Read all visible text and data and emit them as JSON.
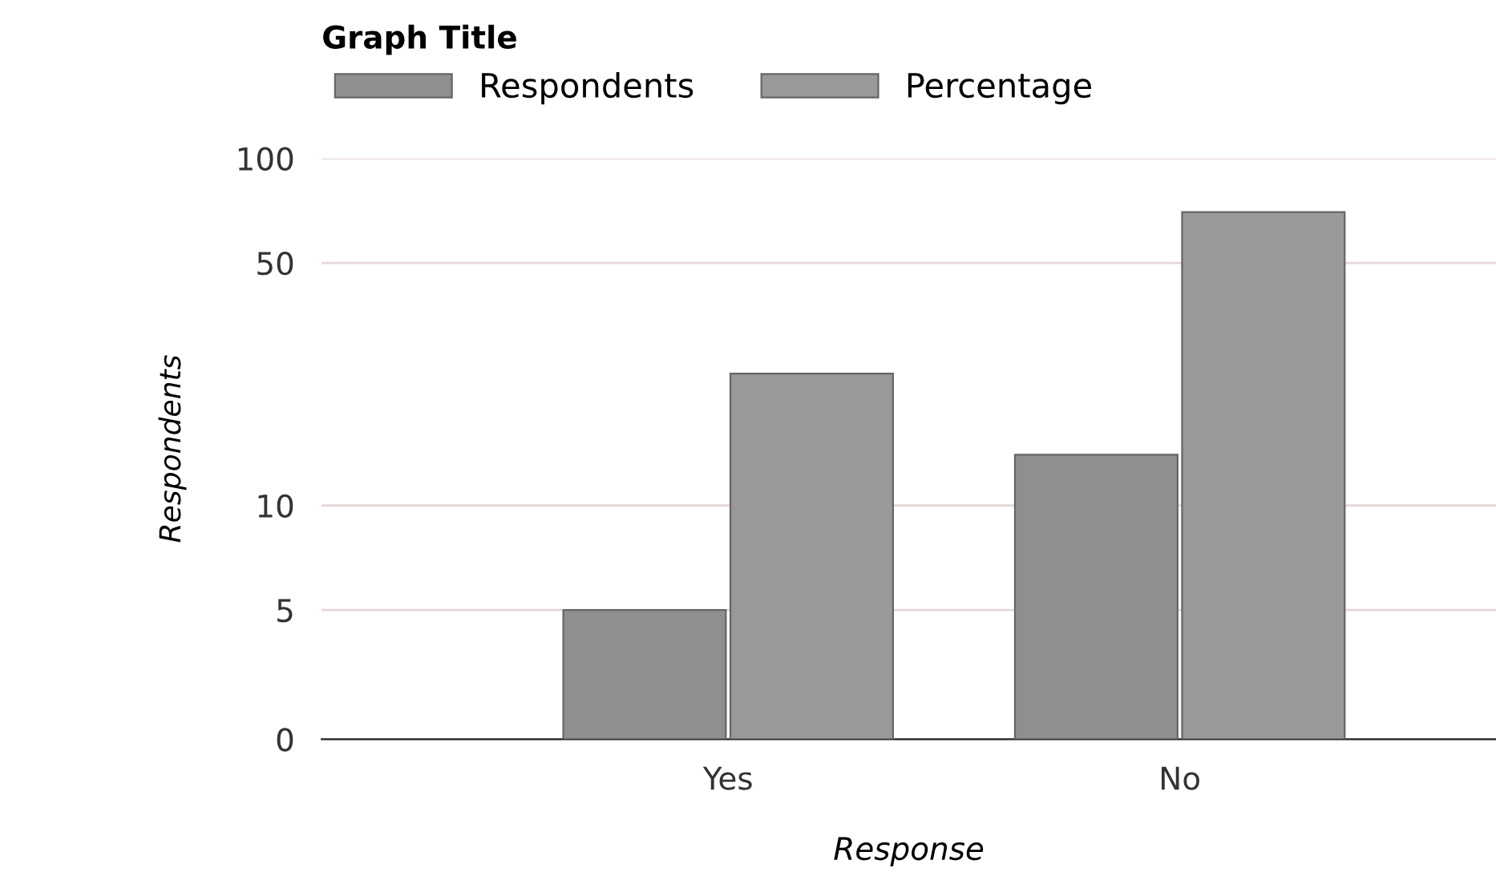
{
  "chart_data": {
    "type": "bar",
    "title": "Graph Title",
    "xlabel": "Response",
    "ylabel": "Respondents",
    "categories": [
      "Yes",
      "No"
    ],
    "series": [
      {
        "name": "Respondents",
        "color": "#8f8f8f",
        "values": [
          5,
          14
        ]
      },
      {
        "name": "Percentage",
        "color": "#999999",
        "values": [
          24,
          70
        ]
      }
    ],
    "log": "y",
    "ylim": [
      0,
      100
    ],
    "yticks": [
      0,
      5,
      10,
      50,
      100
    ],
    "grid": "y",
    "legend": "top left"
  }
}
